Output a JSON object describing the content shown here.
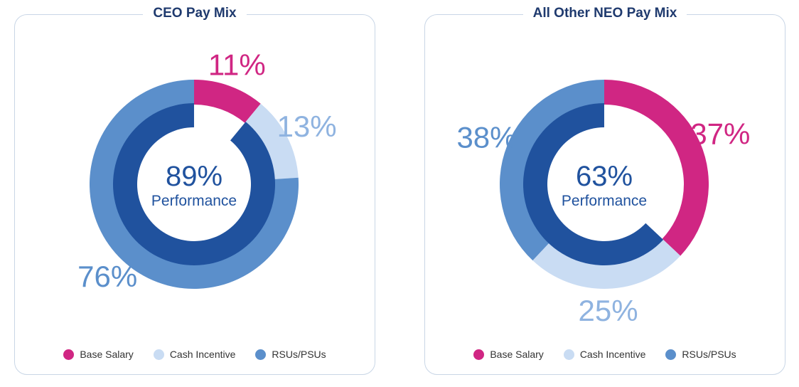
{
  "chart_data": [
    {
      "type": "pie",
      "title": "CEO Pay Mix",
      "categories": [
        "Base Salary",
        "Cash Incentive",
        "RSUs/PSUs"
      ],
      "values": [
        11,
        13,
        76
      ],
      "value_labels": [
        "11%",
        "13%",
        "76%"
      ],
      "performance": {
        "value": 89,
        "label": "89%",
        "text": "Performance"
      }
    },
    {
      "type": "pie",
      "title": "All Other NEO Pay Mix",
      "categories": [
        "Base Salary",
        "Cash Incentive",
        "RSUs/PSUs"
      ],
      "values": [
        37,
        25,
        38
      ],
      "value_labels": [
        "37%",
        "25%",
        "38%"
      ],
      "performance": {
        "value": 63,
        "label": "63%",
        "text": "Performance"
      }
    }
  ],
  "colors": {
    "base": "#d02683",
    "cash": "#c9dcf3",
    "rsu": "#5b8fcb",
    "performance": "#20529e"
  }
}
